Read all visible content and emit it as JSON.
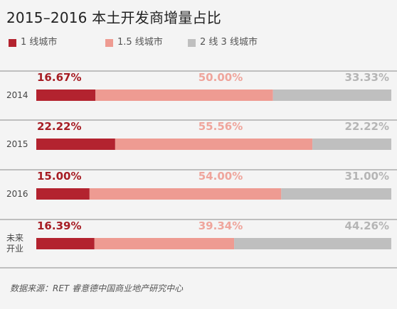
{
  "colors": {
    "tier1": "#b3232f",
    "tier1_5": "#ee9b92",
    "tier2_3": "#bfbfbf",
    "divider": "#8a8a8a"
  },
  "chart_data": {
    "type": "bar",
    "stacked": true,
    "orientation": "horizontal",
    "title": "2015–2016 本土开发商增量占比",
    "categories": [
      "2014",
      "2015",
      "2016",
      "未来\n开业"
    ],
    "series": [
      {
        "name": "1 线城市",
        "color": "#b3232f",
        "label_color": "#a61d24",
        "values": [
          16.67,
          22.22,
          15.0,
          16.39
        ]
      },
      {
        "name": "1.5 线城市",
        "color": "#ee9b92",
        "label_color": "#efa59c",
        "values": [
          50.0,
          55.56,
          54.0,
          39.34
        ]
      },
      {
        "name": "2 线 3 线城市",
        "color": "#bfbfbf",
        "label_color": "#b5b5b5",
        "values": [
          33.33,
          22.22,
          31.0,
          44.26
        ]
      }
    ],
    "data_labels": [
      [
        "16.67%",
        "50.00%",
        "33.33%"
      ],
      [
        "22.22%",
        "55.56%",
        "22.22%"
      ],
      [
        "15.00%",
        "54.00%",
        "31.00%"
      ],
      [
        "16.39%",
        "39.34%",
        "44.26%"
      ]
    ],
    "xlim": [
      0,
      100
    ],
    "legend_position": "top-left",
    "grid": false,
    "source": "数据来源：RET 睿意德中国商业地产研究中心"
  }
}
